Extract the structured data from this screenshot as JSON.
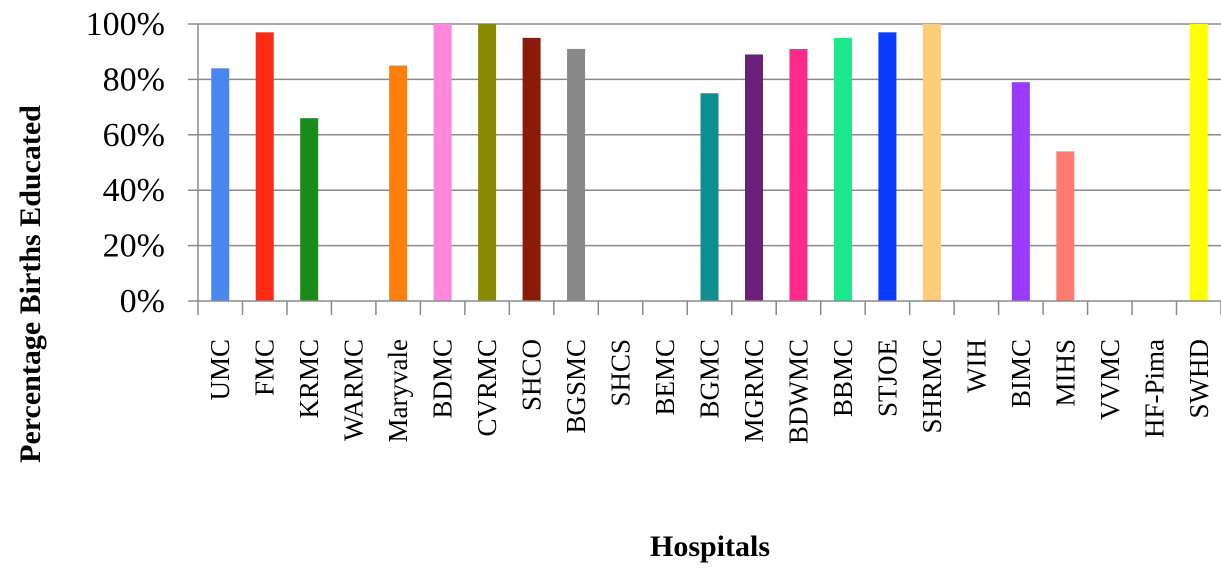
{
  "chart_data": {
    "type": "bar",
    "title": "",
    "xlabel": "Hospitals",
    "ylabel": "Percentage Births Educated",
    "ylim": [
      0,
      100
    ],
    "yticks": [
      "0%",
      "20%",
      "40%",
      "60%",
      "80%",
      "100%"
    ],
    "grid": true,
    "legend": "none",
    "categories": [
      "UMC",
      "FMC",
      "KRMC",
      "WARMC",
      "Maryvale",
      "BDMC",
      "CVRMC",
      "SHCO",
      "BGSMC",
      "SHCS",
      "BEMC",
      "BGMC",
      "MGRMC",
      "BDWMC",
      "BBMC",
      "STJOE",
      "SHRMC",
      "WIH",
      "BIMC",
      "MIHS",
      "VVMC",
      "HF-Pima",
      "SWHD"
    ],
    "values": [
      84,
      97,
      66,
      0,
      85,
      100,
      100,
      95,
      91,
      0,
      0,
      75,
      89,
      91,
      95,
      97,
      100,
      0,
      79,
      54,
      0,
      0,
      100
    ],
    "colors": [
      "#4a86f0",
      "#ff2a14",
      "#1a8a1a",
      "#888888",
      "#ff7f0e",
      "#ff88dd",
      "#8a8a00",
      "#8b1a0a",
      "#888888",
      "#888888",
      "#888888",
      "#0f8f8f",
      "#6a1f7a",
      "#ff2a8a",
      "#1ae88a",
      "#0a3aff",
      "#ffcc77",
      "#888888",
      "#9a3aff",
      "#ff7a70",
      "#888888",
      "#888888",
      "#ffff00"
    ]
  }
}
